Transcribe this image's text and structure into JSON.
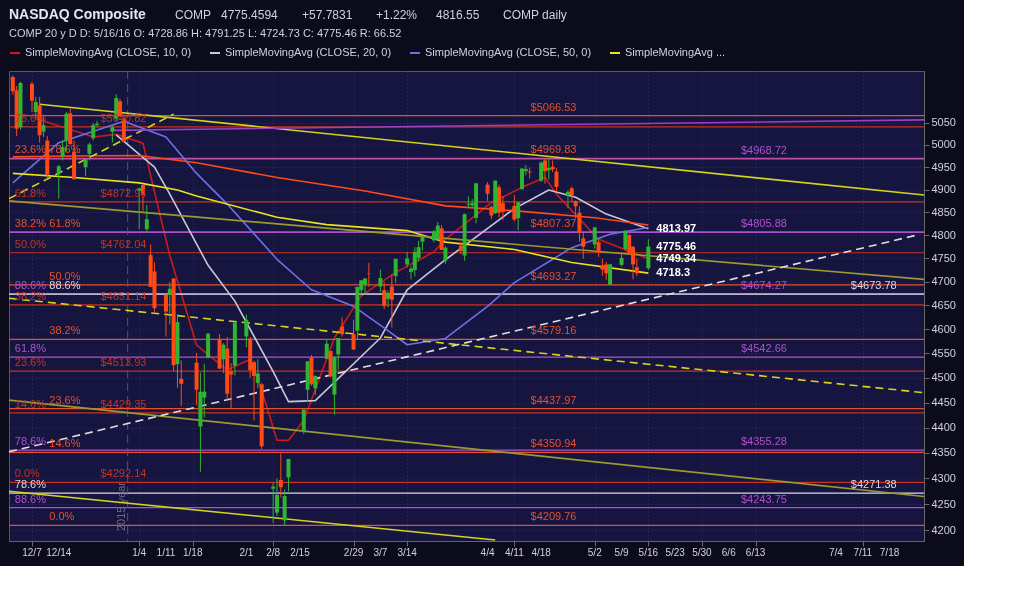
{
  "chart_data": {
    "type": "candlestick",
    "title": "NASDAQ Composite",
    "subtitle": "COMP 20 y D D: 5/16/16 O: 4728.86 H: 4791.25 L: 4724.73 C: 4775.46 R: 66.52",
    "log": true,
    "grid": true,
    "legend": "top",
    "xlim": [
      "2015-12-01",
      "2016-07-27"
    ],
    "xticks": [
      {
        "value": "2015-12-07",
        "label": "12/7"
      },
      {
        "value": "2015-12-14",
        "label": "12/14"
      },
      {
        "value": "2016-01-04",
        "label": "1/4"
      },
      {
        "value": "2016-01-11",
        "label": "1/11"
      },
      {
        "value": "2016-01-18",
        "label": "1/18"
      },
      {
        "value": "2016-02-01",
        "label": "2/1"
      },
      {
        "value": "2016-02-08",
        "label": "2/8"
      },
      {
        "value": "2016-02-15",
        "label": "2/15"
      },
      {
        "value": "2016-02-29",
        "label": "2/29"
      },
      {
        "value": "2016-03-07",
        "label": "3/7"
      },
      {
        "value": "2016-03-14",
        "label": "3/14"
      },
      {
        "value": "2016-04-04",
        "label": "4/4"
      },
      {
        "value": "2016-04-11",
        "label": "4/11"
      },
      {
        "value": "2016-04-18",
        "label": "4/18"
      },
      {
        "value": "2016-05-02",
        "label": "5/2"
      },
      {
        "value": "2016-05-09",
        "label": "5/9"
      },
      {
        "value": "2016-05-16",
        "label": "5/16"
      },
      {
        "value": "2016-05-23",
        "label": "5/23"
      },
      {
        "value": "2016-05-30",
        "label": "5/30"
      },
      {
        "value": "2016-06-06",
        "label": "6/6"
      },
      {
        "value": "2016-06-13",
        "label": "6/13"
      },
      {
        "value": "2016-07-04",
        "label": "7/4"
      },
      {
        "value": "2016-07-11",
        "label": "7/11"
      },
      {
        "value": "2016-07-18",
        "label": "7/18"
      }
    ],
    "ylim": [
      4180,
      5170
    ],
    "yticks": [
      4200,
      4250,
      4300,
      4350,
      4400,
      4450,
      4500,
      4550,
      4600,
      4650,
      4700,
      4750,
      4800,
      4850,
      4900,
      4950,
      5000,
      5050
    ],
    "x": [
      "2015-12-02",
      "2015-12-03",
      "2015-12-04",
      "2015-12-07",
      "2015-12-08",
      "2015-12-09",
      "2015-12-10",
      "2015-12-11",
      "2015-12-14",
      "2015-12-15",
      "2015-12-16",
      "2015-12-17",
      "2015-12-18",
      "2015-12-21",
      "2015-12-22",
      "2015-12-23",
      "2015-12-24",
      "2015-12-28",
      "2015-12-29",
      "2015-12-30",
      "2015-12-31",
      "2016-01-04",
      "2016-01-05",
      "2016-01-06",
      "2016-01-07",
      "2016-01-08",
      "2016-01-11",
      "2016-01-12",
      "2016-01-13",
      "2016-01-14",
      "2016-01-15",
      "2016-01-19",
      "2016-01-20",
      "2016-01-21",
      "2016-01-22",
      "2016-01-25",
      "2016-01-26",
      "2016-01-27",
      "2016-01-28",
      "2016-01-29",
      "2016-02-01",
      "2016-02-02",
      "2016-02-03",
      "2016-02-04",
      "2016-02-05",
      "2016-02-08",
      "2016-02-09",
      "2016-02-10",
      "2016-02-11",
      "2016-02-12",
      "2016-02-16",
      "2016-02-17",
      "2016-02-18",
      "2016-02-19",
      "2016-02-22",
      "2016-02-23",
      "2016-02-24",
      "2016-02-25",
      "2016-02-26",
      "2016-02-29",
      "2016-03-01",
      "2016-03-02",
      "2016-03-03",
      "2016-03-04",
      "2016-03-07",
      "2016-03-08",
      "2016-03-09",
      "2016-03-10",
      "2016-03-11",
      "2016-03-14",
      "2016-03-15",
      "2016-03-16",
      "2016-03-17",
      "2016-03-18",
      "2016-03-21",
      "2016-03-22",
      "2016-03-23",
      "2016-03-24",
      "2016-03-28",
      "2016-03-29",
      "2016-03-30",
      "2016-03-31",
      "2016-04-01",
      "2016-04-04",
      "2016-04-05",
      "2016-04-06",
      "2016-04-07",
      "2016-04-08",
      "2016-04-11",
      "2016-04-12",
      "2016-04-13",
      "2016-04-14",
      "2016-04-15",
      "2016-04-18",
      "2016-04-19",
      "2016-04-20",
      "2016-04-21",
      "2016-04-22",
      "2016-04-25",
      "2016-04-26",
      "2016-04-27",
      "2016-04-28",
      "2016-04-29",
      "2016-05-02",
      "2016-05-03",
      "2016-05-04",
      "2016-05-05",
      "2016-05-06",
      "2016-05-09",
      "2016-05-10",
      "2016-05-11",
      "2016-05-12",
      "2016-05-13",
      "2016-05-16"
    ],
    "ohlc": [
      [
        5156,
        5160,
        5115,
        5123
      ],
      [
        5125,
        5135,
        5020,
        5037
      ],
      [
        5040,
        5145,
        5035,
        5142
      ],
      [
        5140,
        5145,
        5075,
        5101
      ],
      [
        5075,
        5110,
        5060,
        5098
      ],
      [
        5090,
        5110,
        5005,
        5022
      ],
      [
        5030,
        5065,
        5018,
        5045
      ],
      [
        5010,
        5020,
        4925,
        4933
      ],
      [
        4935,
        4955,
        4880,
        4952
      ],
      [
        4975,
        5010,
        4965,
        4995
      ],
      [
        5010,
        5075,
        4985,
        5071
      ],
      [
        5072,
        5085,
        5000,
        5002
      ],
      [
        4985,
        5010,
        4922,
        4923
      ],
      [
        4950,
        4970,
        4930,
        4968
      ],
      [
        4980,
        5005,
        4965,
        5001
      ],
      [
        5015,
        5050,
        5010,
        5045
      ],
      [
        5045,
        5055,
        5040,
        5048
      ],
      [
        5030,
        5045,
        5005,
        5040
      ],
      [
        5060,
        5116,
        5055,
        5107
      ],
      [
        5100,
        5105,
        5064,
        5065
      ],
      [
        5060,
        5065,
        5005,
        5007
      ],
      [
        4897,
        4903,
        4813,
        4903
      ],
      [
        4910,
        4911,
        4853,
        4891
      ],
      [
        4813,
        4866,
        4806,
        4835
      ],
      [
        4757,
        4780,
        4689,
        4689
      ],
      [
        4722,
        4742,
        4637,
        4644
      ],
      [
        4673,
        4673,
        4585,
        4637
      ],
      [
        4672,
        4699,
        4610,
        4685
      ],
      [
        4707,
        4708,
        4514,
        4526
      ],
      [
        4528,
        4632,
        4480,
        4615
      ],
      [
        4498,
        4536,
        4443,
        4488
      ],
      [
        4531,
        4551,
        4445,
        4476
      ],
      [
        4402,
        4511,
        4313,
        4472
      ],
      [
        4460,
        4529,
        4420,
        4472
      ],
      [
        4541,
        4592,
        4540,
        4591
      ],
      [
        4580,
        4590,
        4518,
        4519
      ],
      [
        4538,
        4571,
        4510,
        4568
      ],
      [
        4560,
        4584,
        4456,
        4468
      ],
      [
        4513,
        4530,
        4437,
        4507
      ],
      [
        4525,
        4614,
        4505,
        4614
      ],
      [
        4585,
        4631,
        4563,
        4620
      ],
      [
        4581,
        4584,
        4500,
        4516
      ],
      [
        4532,
        4535,
        4414,
        4504
      ],
      [
        4490,
        4538,
        4479,
        4509
      ],
      [
        4487,
        4490,
        4357,
        4363
      ],
      [
        4280,
        4292,
        4214,
        4284
      ],
      [
        4234,
        4300,
        4227,
        4268
      ],
      [
        4297,
        4349,
        4263,
        4283
      ],
      [
        4219,
        4279,
        4209.76,
        4266
      ],
      [
        4302,
        4338,
        4275,
        4338
      ],
      [
        4394,
        4436,
        4387,
        4436
      ],
      [
        4476,
        4534,
        4452,
        4534
      ],
      [
        4542,
        4547,
        4484,
        4487
      ],
      [
        4479,
        4505,
        4465,
        4504
      ],
      [
        4539,
        4580,
        4539,
        4570
      ],
      [
        4555,
        4555,
        4501,
        4503
      ],
      [
        4466,
        4544,
        4426,
        4542
      ],
      [
        4548,
        4582,
        4517,
        4582
      ],
      [
        4606,
        4625,
        4585,
        4590
      ],
      [
        4590,
        4620,
        4557,
        4558
      ],
      [
        4597,
        4689,
        4580,
        4689
      ],
      [
        4682,
        4704,
        4671,
        4703
      ],
      [
        4694,
        4707,
        4672,
        4707
      ],
      [
        4718,
        4740,
        4689,
        4717
      ],
      [
        4690,
        4726,
        4678,
        4708
      ],
      [
        4682,
        4699,
        4642,
        4649
      ],
      [
        4664,
        4681,
        4646,
        4675
      ],
      [
        4690,
        4716,
        4604,
        4662
      ],
      [
        4712,
        4749,
        4698,
        4749
      ],
      [
        4737,
        4764,
        4731,
        4750
      ],
      [
        4721,
        4733,
        4705,
        4728
      ],
      [
        4725,
        4774,
        4711,
        4764
      ],
      [
        4751,
        4788,
        4743,
        4774
      ],
      [
        4786,
        4799,
        4767,
        4796
      ],
      [
        4789,
        4812,
        4785,
        4808
      ],
      [
        4791,
        4829,
        4789,
        4821
      ],
      [
        4815,
        4822,
        4768,
        4768
      ],
      [
        4745,
        4776,
        4738,
        4773
      ],
      [
        4777,
        4785,
        4759,
        4766
      ],
      [
        4756,
        4847,
        4745,
        4846
      ],
      [
        4867,
        4885,
        4859,
        4869
      ],
      [
        4865,
        4879,
        4862,
        4870
      ],
      [
        4838,
        4914,
        4826,
        4914
      ],
      [
        4911,
        4917,
        4875,
        4891
      ],
      [
        4862,
        4865,
        4835,
        4843
      ],
      [
        4848,
        4920,
        4846,
        4920
      ],
      [
        4905,
        4911,
        4839,
        4849
      ],
      [
        4870,
        4886,
        4833,
        4851
      ],
      [
        4864,
        4888,
        4830,
        4834
      ],
      [
        4837,
        4872,
        4811,
        4872
      ],
      [
        4901,
        4947,
        4901,
        4947
      ],
      [
        4941,
        4955,
        4932,
        4946
      ],
      [
        4940,
        4949,
        4925,
        4938
      ],
      [
        4920,
        4963,
        4917,
        4960
      ],
      [
        4965,
        4970,
        4913,
        4941
      ],
      [
        4943,
        4969.83,
        4922,
        4948
      ],
      [
        4951,
        4965,
        4939,
        4945
      ],
      [
        4940,
        4948,
        4894,
        4906
      ],
      [
        4887,
        4898,
        4859,
        4895
      ],
      [
        4903,
        4907,
        4873,
        4888
      ],
      [
        4875,
        4876,
        4836,
        4863
      ],
      [
        4849,
        4863,
        4786,
        4805
      ],
      [
        4793,
        4805,
        4749,
        4775
      ],
      [
        4780,
        4818,
        4771,
        4817
      ],
      [
        4785,
        4791,
        4753,
        4763
      ],
      [
        4735,
        4749,
        4713,
        4726
      ],
      [
        4737,
        4742,
        4703,
        4718
      ],
      [
        4694,
        4738,
        4693.27,
        4737
      ],
      [
        4736,
        4763,
        4733,
        4751
      ],
      [
        4770,
        4810,
        4766,
        4810
      ],
      [
        4800,
        4803,
        4758,
        4760
      ],
      [
        4775,
        4776,
        4705,
        4737
      ],
      [
        4731,
        4750,
        4712,
        4718
      ],
      [
        4728.86,
        4791.25,
        4724.73,
        4775.46
      ]
    ],
    "colors": [
      "#ff4a14",
      "#ff4a14",
      "#2fb52f",
      "#ff4a14",
      "#2fb52f",
      "#ff4a14",
      "#2fb52f",
      "#ff4a14",
      "#2fb52f",
      "#2fb52f",
      "#2fb52f",
      "#ff4a14",
      "#ff4a14",
      "#2fb52f",
      "#2fb52f",
      "#2fb52f",
      "#2fb52f",
      "#2fb52f",
      "#2fb52f",
      "#ff4a14",
      "#ff4a14",
      "#2fb52f",
      "#ff4a14",
      "#2fb52f",
      "#ff4a14",
      "#ff4a14",
      "#ff4a14",
      "#2fb52f",
      "#ff4a14",
      "#2fb52f",
      "#ff4a14",
      "#ff4a14",
      "#2fb52f",
      "#2fb52f",
      "#2fb52f",
      "#ff4a14",
      "#2fb52f",
      "#ff4a14",
      "#ff4a14",
      "#2fb52f",
      "#2fb52f",
      "#ff4a14",
      "#ff4a14",
      "#2fb52f",
      "#ff4a14",
      "#2fb52f",
      "#2fb52f",
      "#ff4a14",
      "#2fb52f",
      "#2fb52f",
      "#2fb52f",
      "#2fb52f",
      "#ff4a14",
      "#2fb52f",
      "#2fb52f",
      "#ff4a14",
      "#2fb52f",
      "#2fb52f",
      "#ff4a14",
      "#ff4a14",
      "#2fb52f",
      "#2fb52f",
      "#2fb52f",
      "#ff4a14",
      "#2fb52f",
      "#ff4a14",
      "#2fb52f",
      "#ff4a14",
      "#2fb52f",
      "#2fb52f",
      "#2fb52f",
      "#2fb52f",
      "#2fb52f",
      "#2fb52f",
      "#2fb52f",
      "#2fb52f",
      "#ff4a14",
      "#2fb52f",
      "#ff4a14",
      "#2fb52f",
      "#2fb52f",
      "#2fb52f",
      "#2fb52f",
      "#ff4a14",
      "#ff4a14",
      "#2fb52f",
      "#ff4a14",
      "#ff4a14",
      "#ff4a14",
      "#2fb52f",
      "#2fb52f",
      "#2fb52f",
      "#ff4a14",
      "#2fb52f",
      "#ff4a14",
      "#2fb52f",
      "#ff4a14",
      "#ff4a14",
      "#2fb52f",
      "#ff4a14",
      "#ff4a14",
      "#ff4a14",
      "#ff4a14",
      "#2fb52f",
      "#ff4a14",
      "#ff4a14",
      "#ff4a14",
      "#2fb52f",
      "#2fb52f",
      "#2fb52f",
      "#ff4a14",
      "#ff4a14",
      "#ff4a14",
      "#2fb52f"
    ],
    "series": [
      {
        "type": "line",
        "name": "SimpleMovingAvg (CLOSE, 10, 0)",
        "color": "#cc1a1a",
        "x": [
          "2015-12-08",
          "2015-12-23",
          "2015-12-29",
          "2016-01-05",
          "2016-01-08",
          "2016-01-12",
          "2016-01-19",
          "2016-01-27",
          "2016-02-02",
          "2016-02-05",
          "2016-02-09",
          "2016-02-12",
          "2016-02-16",
          "2016-02-24",
          "2016-03-02",
          "2016-03-11",
          "2016-03-21",
          "2016-03-24",
          "2016-04-05",
          "2016-04-13",
          "2016-04-19",
          "2016-04-22",
          "2016-05-03",
          "2016-05-16"
        ],
        "values": [
          5060,
          5018,
          5024,
          5004,
          4895,
          4756,
          4567,
          4516,
          4538,
          4475,
          4375,
          4375,
          4414,
          4582,
          4670,
          4720,
          4764,
          4791,
          4871,
          4905,
          4927,
          4890,
          4791,
          4749.34
        ]
      },
      {
        "type": "line",
        "name": "SimpleMovingAvg (CLOSE, 20, 0)",
        "color": "#c8c8d8",
        "x": [
          "2015-12-29",
          "2016-01-08",
          "2016-01-12",
          "2016-01-22",
          "2016-01-29",
          "2016-02-08",
          "2016-02-12",
          "2016-02-19",
          "2016-03-07",
          "2016-03-14",
          "2016-03-24",
          "2016-04-11",
          "2016-04-20",
          "2016-04-27",
          "2016-05-05",
          "2016-05-16"
        ],
        "values": [
          5023,
          4950,
          4890,
          4735,
          4659,
          4513,
          4452,
          4454,
          4582,
          4683,
          4747,
          4858,
          4899,
          4883,
          4846,
          4813.97
        ]
      },
      {
        "type": "line",
        "name": "SimpleMovingAvg (CLOSE, 50, 0)",
        "color": "#6f6fe8",
        "x": [
          "2015-12-02",
          "2015-12-14",
          "2015-12-31",
          "2016-01-11",
          "2016-01-19",
          "2016-01-27",
          "2016-02-09",
          "2016-02-18",
          "2016-02-29",
          "2016-03-08",
          "2016-03-14",
          "2016-03-24",
          "2016-04-04",
          "2016-04-11",
          "2016-04-26",
          "2016-05-06",
          "2016-05-16"
        ],
        "values": [
          4915,
          5005,
          5054,
          5018,
          4936,
          4868,
          4748,
          4683,
          4648,
          4603,
          4568,
          4581,
          4648,
          4698,
          4773,
          4802,
          4816.55
        ]
      },
      {
        "type": "line",
        "name": "SimpleMovingAvg ...",
        "color": "#e5e51a",
        "x": [
          "2015-12-02",
          "2015-12-18",
          "2016-01-04",
          "2016-01-14",
          "2016-01-19",
          "2016-02-09",
          "2016-02-22",
          "2016-03-14",
          "2016-03-24",
          "2016-04-11",
          "2016-04-26",
          "2016-05-16"
        ],
        "values": [
          4936,
          4927,
          4915,
          4899,
          4886,
          4839,
          4823,
          4810,
          4785,
          4769,
          4741,
          4718.3
        ]
      },
      {
        "type": "line",
        "color": "#ff4a1a",
        "x": [
          "2015-12-02",
          "2015-12-18",
          "2016-01-04",
          "2016-01-19",
          "2016-02-09",
          "2016-03-03",
          "2016-03-24",
          "2016-04-13",
          "2016-05-02",
          "2016-05-16"
        ],
        "values": [
          4973,
          4975,
          4976,
          4960,
          4927,
          4897,
          4864,
          4852,
          4838,
          4822
        ]
      },
      {
        "type": "line",
        "color": "#d4d41a",
        "x": [
          "2015-12-09",
          "2016-07-27"
        ],
        "values": [
          5093,
          4888
        ]
      },
      {
        "type": "line",
        "color": "#9a9a30",
        "x": [
          "2015-12-01",
          "2016-07-27"
        ],
        "values": [
          4875,
          4705
        ]
      },
      {
        "type": "line",
        "color": "#9a9a30",
        "x": [
          "2015-12-01",
          "2016-07-27"
        ],
        "values": [
          4455,
          4265
        ]
      },
      {
        "type": "line",
        "color": "#d4d41a",
        "x": [
          "2015-12-01",
          "2016-04-06"
        ],
        "values": [
          4275,
          4182
        ]
      },
      {
        "type": "line",
        "color": "#d4d41a",
        "line_style": "dashed",
        "x": [
          "2015-12-01",
          "2016-01-13"
        ],
        "values": [
          4880,
          5070
        ]
      },
      {
        "type": "line",
        "color": "#d4d41a",
        "line_style": "dashed",
        "x": [
          "2015-12-01",
          "2016-07-27"
        ],
        "values": [
          4665,
          4470
        ]
      },
      {
        "type": "line",
        "color": "#e0e0e0",
        "line_style": "dashed",
        "x": [
          "2015-12-01",
          "2016-07-25"
        ],
        "values": [
          4352,
          4800
        ]
      },
      {
        "type": "line",
        "color": "#9a40c0",
        "x": [
          "2015-12-28",
          "2016-07-27"
        ],
        "values": [
          5033,
          5057
        ]
      }
    ],
    "ref_lines": [
      {
        "axis": "y",
        "value": 5040.82,
        "label": "$5040.82",
        "color": "#c8321e"
      },
      {
        "axis": "y",
        "value": 4872.94,
        "label": "$4872.94",
        "color": "#c8321e"
      },
      {
        "axis": "y",
        "value": 4762.04,
        "label": "$4762.04",
        "color": "#c8321e"
      },
      {
        "axis": "y",
        "value": 4651.14,
        "label": "$4651.14",
        "color": "#c8321e"
      },
      {
        "axis": "y",
        "value": 4513.93,
        "label": "$4513.93",
        "color": "#c8321e"
      },
      {
        "axis": "y",
        "value": 4429.35,
        "label": "$4429.35",
        "color": "#c8321e"
      },
      {
        "axis": "y",
        "value": 4292.14,
        "label": "$4292.14",
        "color": "#c8321e"
      },
      {
        "axis": "y",
        "value": 5066.53,
        "label": "$5066.53",
        "color": "#e8502a"
      },
      {
        "axis": "y",
        "value": 4969.83,
        "label": "$4969.83",
        "color": "#e8502a"
      },
      {
        "axis": "y",
        "value": 4807.37,
        "label": "$4807.37",
        "color": "#e8502a"
      },
      {
        "axis": "y",
        "value": 4693.27,
        "label": "$4693.27",
        "color": "#e8502a"
      },
      {
        "axis": "y",
        "value": 4579.16,
        "label": "$4579.16",
        "color": "#e8502a"
      },
      {
        "axis": "y",
        "value": 4437.97,
        "label": "$4437.97",
        "color": "#e8502a"
      },
      {
        "axis": "y",
        "value": 4350.94,
        "label": "$4350.94",
        "color": "#e8502a"
      },
      {
        "axis": "y",
        "value": 4209.76,
        "label": "$4209.76",
        "color": "#e8502a"
      },
      {
        "axis": "y",
        "value": 4968.72,
        "label": "$4968.72",
        "color": "#b050d0"
      },
      {
        "axis": "y",
        "value": 4805.88,
        "label": "$4805.88",
        "color": "#b050d0"
      },
      {
        "axis": "y",
        "value": 4674.27,
        "label": "$4674.27",
        "color": "#b050d0"
      },
      {
        "axis": "y",
        "value": 4542.66,
        "label": "$4542.66",
        "color": "#b050d0"
      },
      {
        "axis": "y",
        "value": 4355.28,
        "label": "$4355.28",
        "color": "#b050d0"
      },
      {
        "axis": "y",
        "value": 4243.75,
        "label": "$4243.75",
        "color": "#b050d0"
      },
      {
        "axis": "y",
        "value": 4673.78,
        "label": "$4673.78",
        "color": "#d8d8e8"
      },
      {
        "axis": "y",
        "value": 4271.38,
        "label": "$4271.38",
        "color": "#d8d8e8"
      },
      {
        "axis": "x",
        "value": "2016-01-01",
        "label": "2015 year",
        "color": "#55557a",
        "line_style": "dashed"
      }
    ],
    "annotations": [
      "COMP",
      "4775.4594",
      "+57.7831",
      "+1.22%",
      "4816.55",
      "COMP daily",
      {
        "text": "78.6%",
        "x": "2015-12-02",
        "y": 5040.82
      },
      {
        "text": "23.6%",
        "x": "2015-12-02",
        "y": 4969.83
      },
      {
        "text": "78.6%",
        "x": "2015-12-11",
        "y": 4969.83
      },
      {
        "text": "61.8%",
        "x": "2015-12-02",
        "y": 4872.94
      },
      {
        "text": "38.2%",
        "x": "2015-12-02",
        "y": 4807.37
      },
      {
        "text": "61.8%",
        "x": "2015-12-11",
        "y": 4807.37
      },
      {
        "text": "50.0%",
        "x": "2015-12-02",
        "y": 4762.04
      },
      {
        "text": "50.0%",
        "x": "2015-12-11",
        "y": 4693.27
      },
      {
        "text": "88.6%",
        "x": "2015-12-02",
        "y": 4674.27
      },
      {
        "text": "88.6%",
        "x": "2015-12-11",
        "y": 4673.78
      },
      {
        "text": "38.2%",
        "x": "2015-12-02",
        "y": 4651.14
      },
      {
        "text": "38.2%",
        "x": "2015-12-11",
        "y": 4579.16
      },
      {
        "text": "61.8%",
        "x": "2015-12-02",
        "y": 4542.66
      },
      {
        "text": "23.6%",
        "x": "2015-12-02",
        "y": 4513.93
      },
      {
        "text": "14.6%",
        "x": "2015-12-02",
        "y": 4429.35
      },
      {
        "text": "23.6%",
        "x": "2015-12-11",
        "y": 4437.97
      },
      {
        "text": "78.6%",
        "x": "2015-12-02",
        "y": 4355.28
      },
      {
        "text": "14.6%",
        "x": "2015-12-11",
        "y": 4350.94
      },
      {
        "text": "0.0%",
        "x": "2015-12-02",
        "y": 4292.14
      },
      {
        "text": "78.6%",
        "x": "2015-12-02",
        "y": 4271.38
      },
      {
        "text": "88.6%",
        "x": "2015-12-02",
        "y": 4243.75
      },
      {
        "text": "0.0%",
        "x": "2015-12-11",
        "y": 4209.76
      },
      {
        "text": "4813.97",
        "x": "2016-05-16",
        "y": 4813.97
      },
      {
        "text": "4775.46",
        "x": "2016-05-16",
        "y": 4775.46
      },
      {
        "text": "4749.34",
        "x": "2016-05-16",
        "y": 4749.34
      },
      {
        "text": "4718.3",
        "x": "2016-05-16",
        "y": 4718.3
      }
    ]
  }
}
